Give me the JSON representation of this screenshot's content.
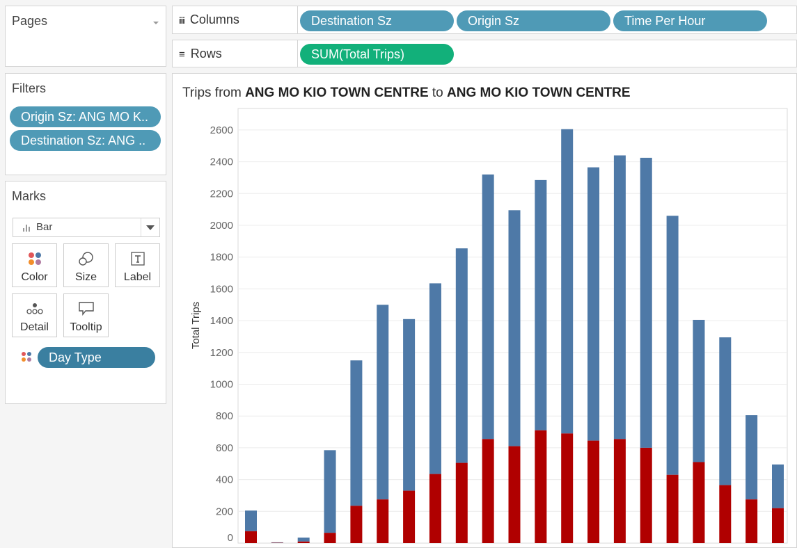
{
  "pages": {
    "title": "Pages"
  },
  "filters": {
    "title": "Filters",
    "items": [
      "Origin Sz: ANG MO K..",
      "Destination Sz: ANG .."
    ]
  },
  "marks": {
    "title": "Marks",
    "mark_type": "Bar",
    "buttons": {
      "color": "Color",
      "size": "Size",
      "label": "Label",
      "detail": "Detail",
      "tooltip": "Tooltip"
    },
    "field": "Day Type"
  },
  "shelves": {
    "columns_label": "Columns",
    "columns": [
      "Destination Sz",
      "Origin Sz",
      "Time Per Hour"
    ],
    "rows_label": "Rows",
    "rows": [
      "SUM(Total Trips)"
    ]
  },
  "viz": {
    "title_prefix": "Trips from ",
    "origin": "ANG MO KIO TOWN CENTRE",
    "title_mid": " to ",
    "destination": "ANG MO KIO TOWN CENTRE"
  },
  "colors": {
    "weekday": "#4e79a7",
    "weekend": "#b00000",
    "pill_blue": "#4f9ab6",
    "pill_green": "#12b07a"
  },
  "chart_data": {
    "type": "bar",
    "stacked": true,
    "ylabel": "Total Trips",
    "ylim": [
      0,
      2700
    ],
    "yticks": [
      0,
      200,
      400,
      600,
      800,
      1000,
      1200,
      1400,
      1600,
      1800,
      2000,
      2200,
      2400,
      2600
    ],
    "grid": true,
    "totals": [
      205,
      5,
      35,
      585,
      1150,
      1500,
      1410,
      1635,
      1855,
      2320,
      2095,
      2285,
      2605,
      2365,
      2440,
      2425,
      2060,
      1405,
      1295,
      805,
      495
    ],
    "series": [
      {
        "color": "#b00000",
        "values": [
          75,
          2,
          10,
          65,
          235,
          275,
          330,
          435,
          505,
          655,
          610,
          710,
          690,
          645,
          655,
          600,
          430,
          510,
          365,
          275,
          220
        ]
      },
      {
        "color": "#4e79a7",
        "values": [
          130,
          3,
          25,
          520,
          915,
          1225,
          1080,
          1200,
          1350,
          1665,
          1485,
          1575,
          1915,
          1720,
          1785,
          1825,
          1630,
          895,
          930,
          530,
          275
        ]
      }
    ]
  }
}
